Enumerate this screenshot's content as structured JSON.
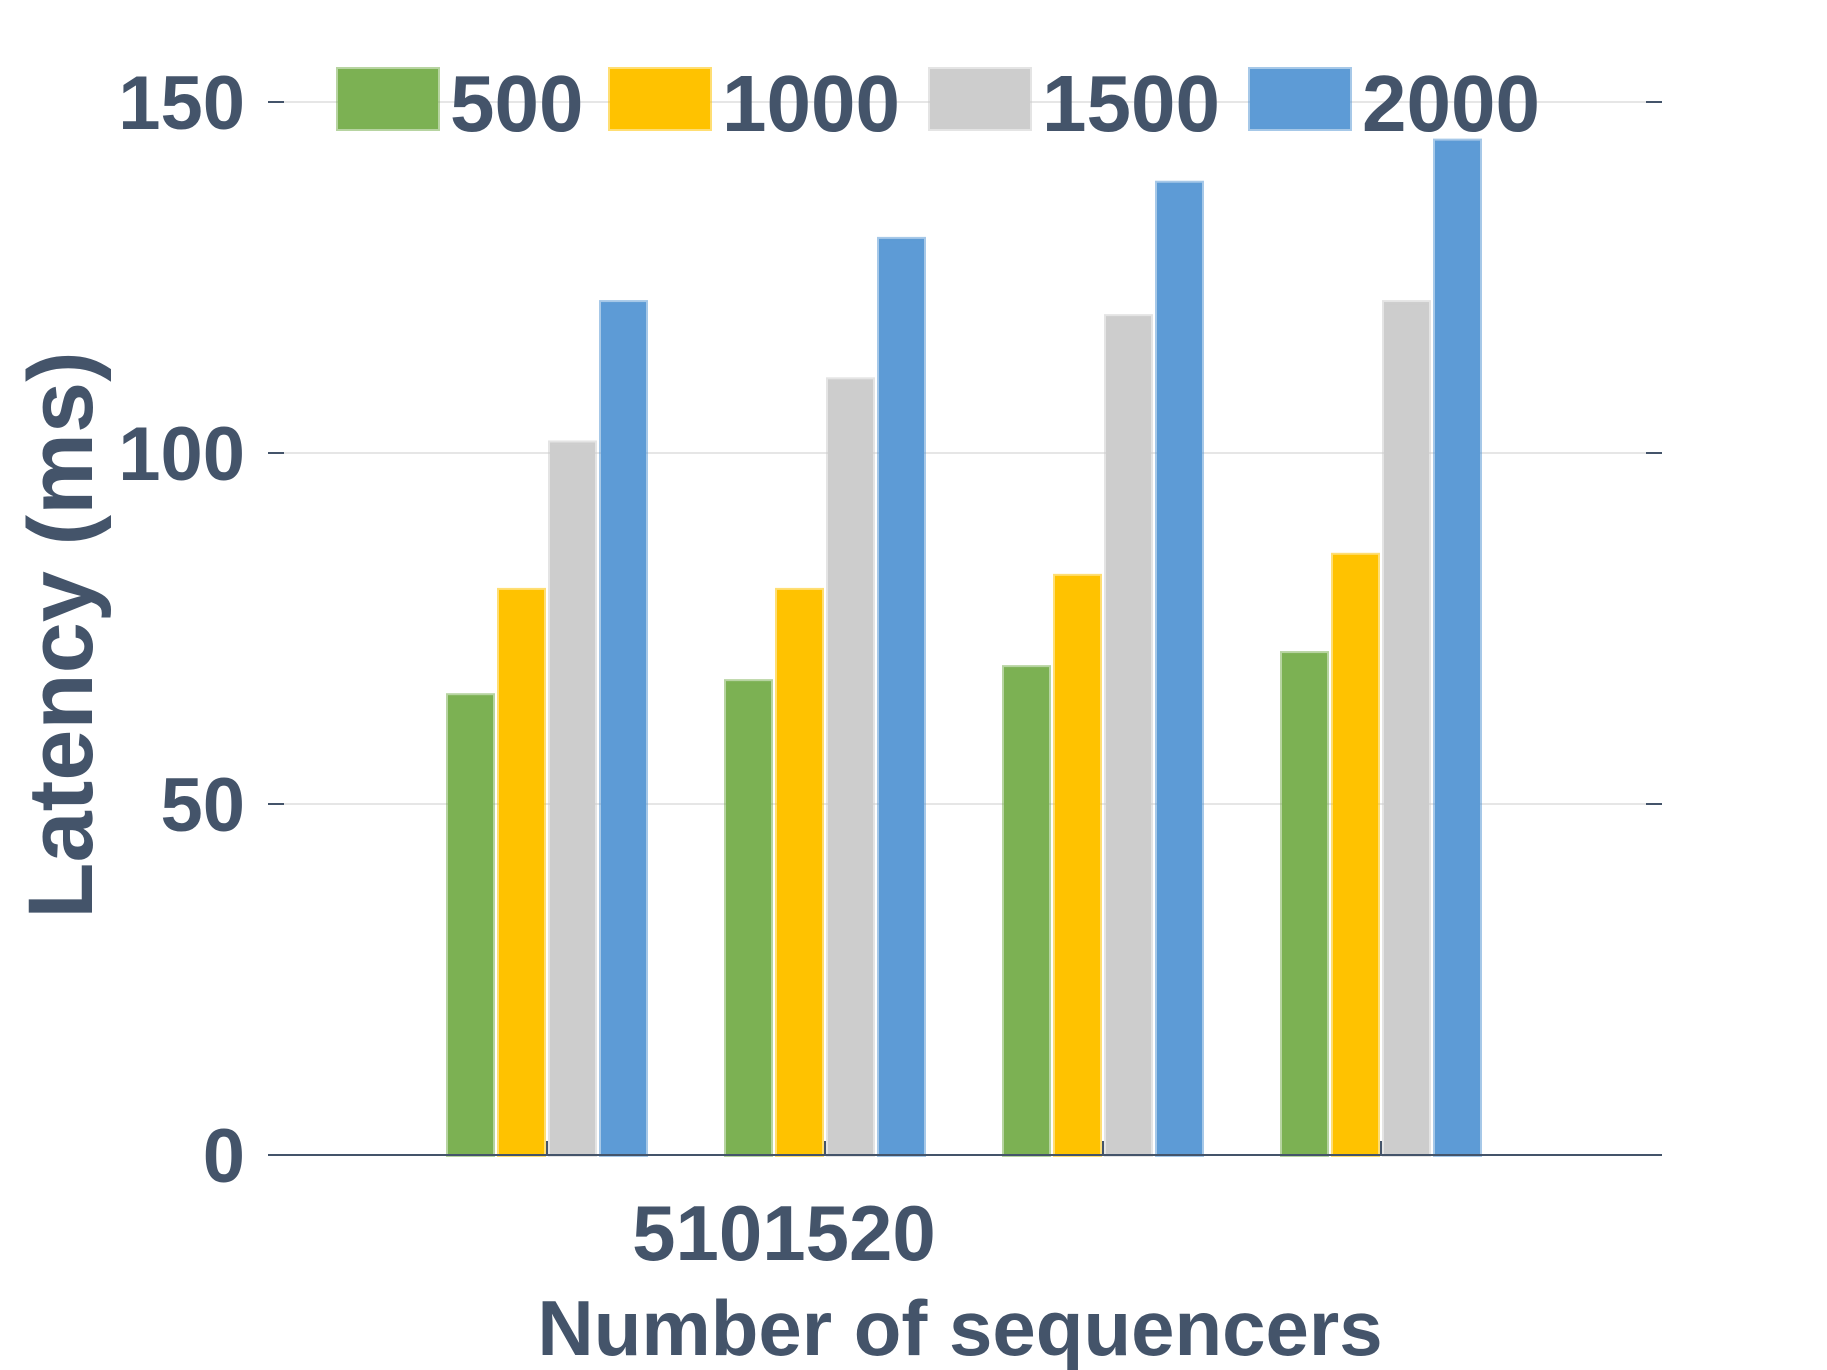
{
  "chart_data": {
    "type": "bar",
    "xlabel": "Number of sequencers",
    "ylabel": "Latency (ms)",
    "categories": [
      "5",
      "10",
      "15",
      "20"
    ],
    "category_tick_text": "5101520",
    "ylim": [
      0,
      150
    ],
    "yticks": [
      0,
      50,
      100,
      150
    ],
    "grid": true,
    "legend_position": "top",
    "series": [
      {
        "name": "500",
        "color": "#7cb153",
        "values": [
          65.5,
          67.5,
          69.5,
          71.5
        ]
      },
      {
        "name": "1000",
        "color": "#ffc200",
        "values": [
          80.5,
          80.5,
          82.5,
          85.5
        ]
      },
      {
        "name": "1500",
        "color": "#cdcdcd",
        "values": [
          101.5,
          110.5,
          119.5,
          121.5
        ]
      },
      {
        "name": "2000",
        "color": "#5d9bd6",
        "values": [
          121.5,
          130.5,
          138.5,
          144.5
        ]
      }
    ]
  }
}
